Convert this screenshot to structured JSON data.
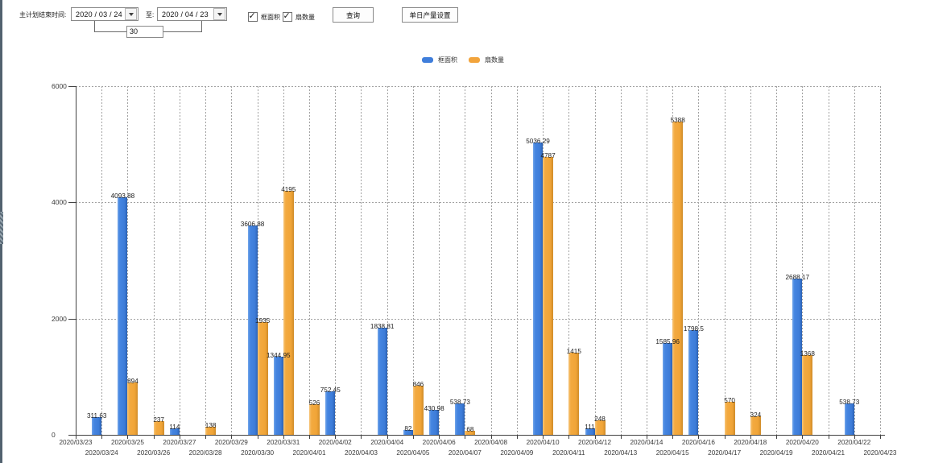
{
  "toolbar": {
    "date_label": "主计划结束时间:",
    "start_date": "2020 / 03 / 24",
    "to_label": "至:",
    "end_date": "2020 / 04 / 23",
    "days_value": "30",
    "checkbox_frame_area": "框面积",
    "checkbox_fan_count": "扇数量",
    "query_button": "查询",
    "daily_output_button": "单日产量设置"
  },
  "chart_data": {
    "type": "bar",
    "title": "",
    "categories": [
      "2020/03/23",
      "2020/03/24",
      "2020/03/25",
      "2020/03/26",
      "2020/03/27",
      "2020/03/28",
      "2020/03/29",
      "2020/03/30",
      "2020/03/31",
      "2020/04/01",
      "2020/04/02",
      "2020/04/03",
      "2020/04/04",
      "2020/04/05",
      "2020/04/06",
      "2020/04/07",
      "2020/04/08",
      "2020/04/09",
      "2020/04/10",
      "2020/04/11",
      "2020/04/12",
      "2020/04/13",
      "2020/04/14",
      "2020/04/15",
      "2020/04/16",
      "2020/04/17",
      "2020/04/18",
      "2020/04/19",
      "2020/04/20",
      "2020/04/21",
      "2020/04/22",
      "2020/04/23"
    ],
    "series": [
      {
        "name": "框面积",
        "color": "#3f7edb",
        "values": [
          null,
          311.63,
          4093.88,
          null,
          114,
          null,
          null,
          3606.88,
          1344.95,
          null,
          752.45,
          null,
          1838.81,
          82,
          430.98,
          538.73,
          null,
          null,
          5036.29,
          null,
          111,
          null,
          null,
          1585.96,
          1798.5,
          null,
          null,
          null,
          2688.17,
          null,
          538.73,
          null
        ]
      },
      {
        "name": "扇数量",
        "color": "#f2a43c",
        "values": [
          null,
          null,
          894,
          237,
          null,
          138,
          null,
          1935,
          4195,
          526,
          null,
          null,
          null,
          846,
          null,
          68,
          null,
          null,
          4787,
          1415,
          248,
          null,
          null,
          5388,
          null,
          570,
          324,
          null,
          1368,
          null,
          null,
          null
        ]
      }
    ],
    "xlabel": "",
    "ylabel": "",
    "ylim": [
      0,
      6000
    ],
    "yticks": [
      0,
      2000,
      4000,
      6000
    ],
    "grid": true,
    "legend_position": "top-center"
  }
}
